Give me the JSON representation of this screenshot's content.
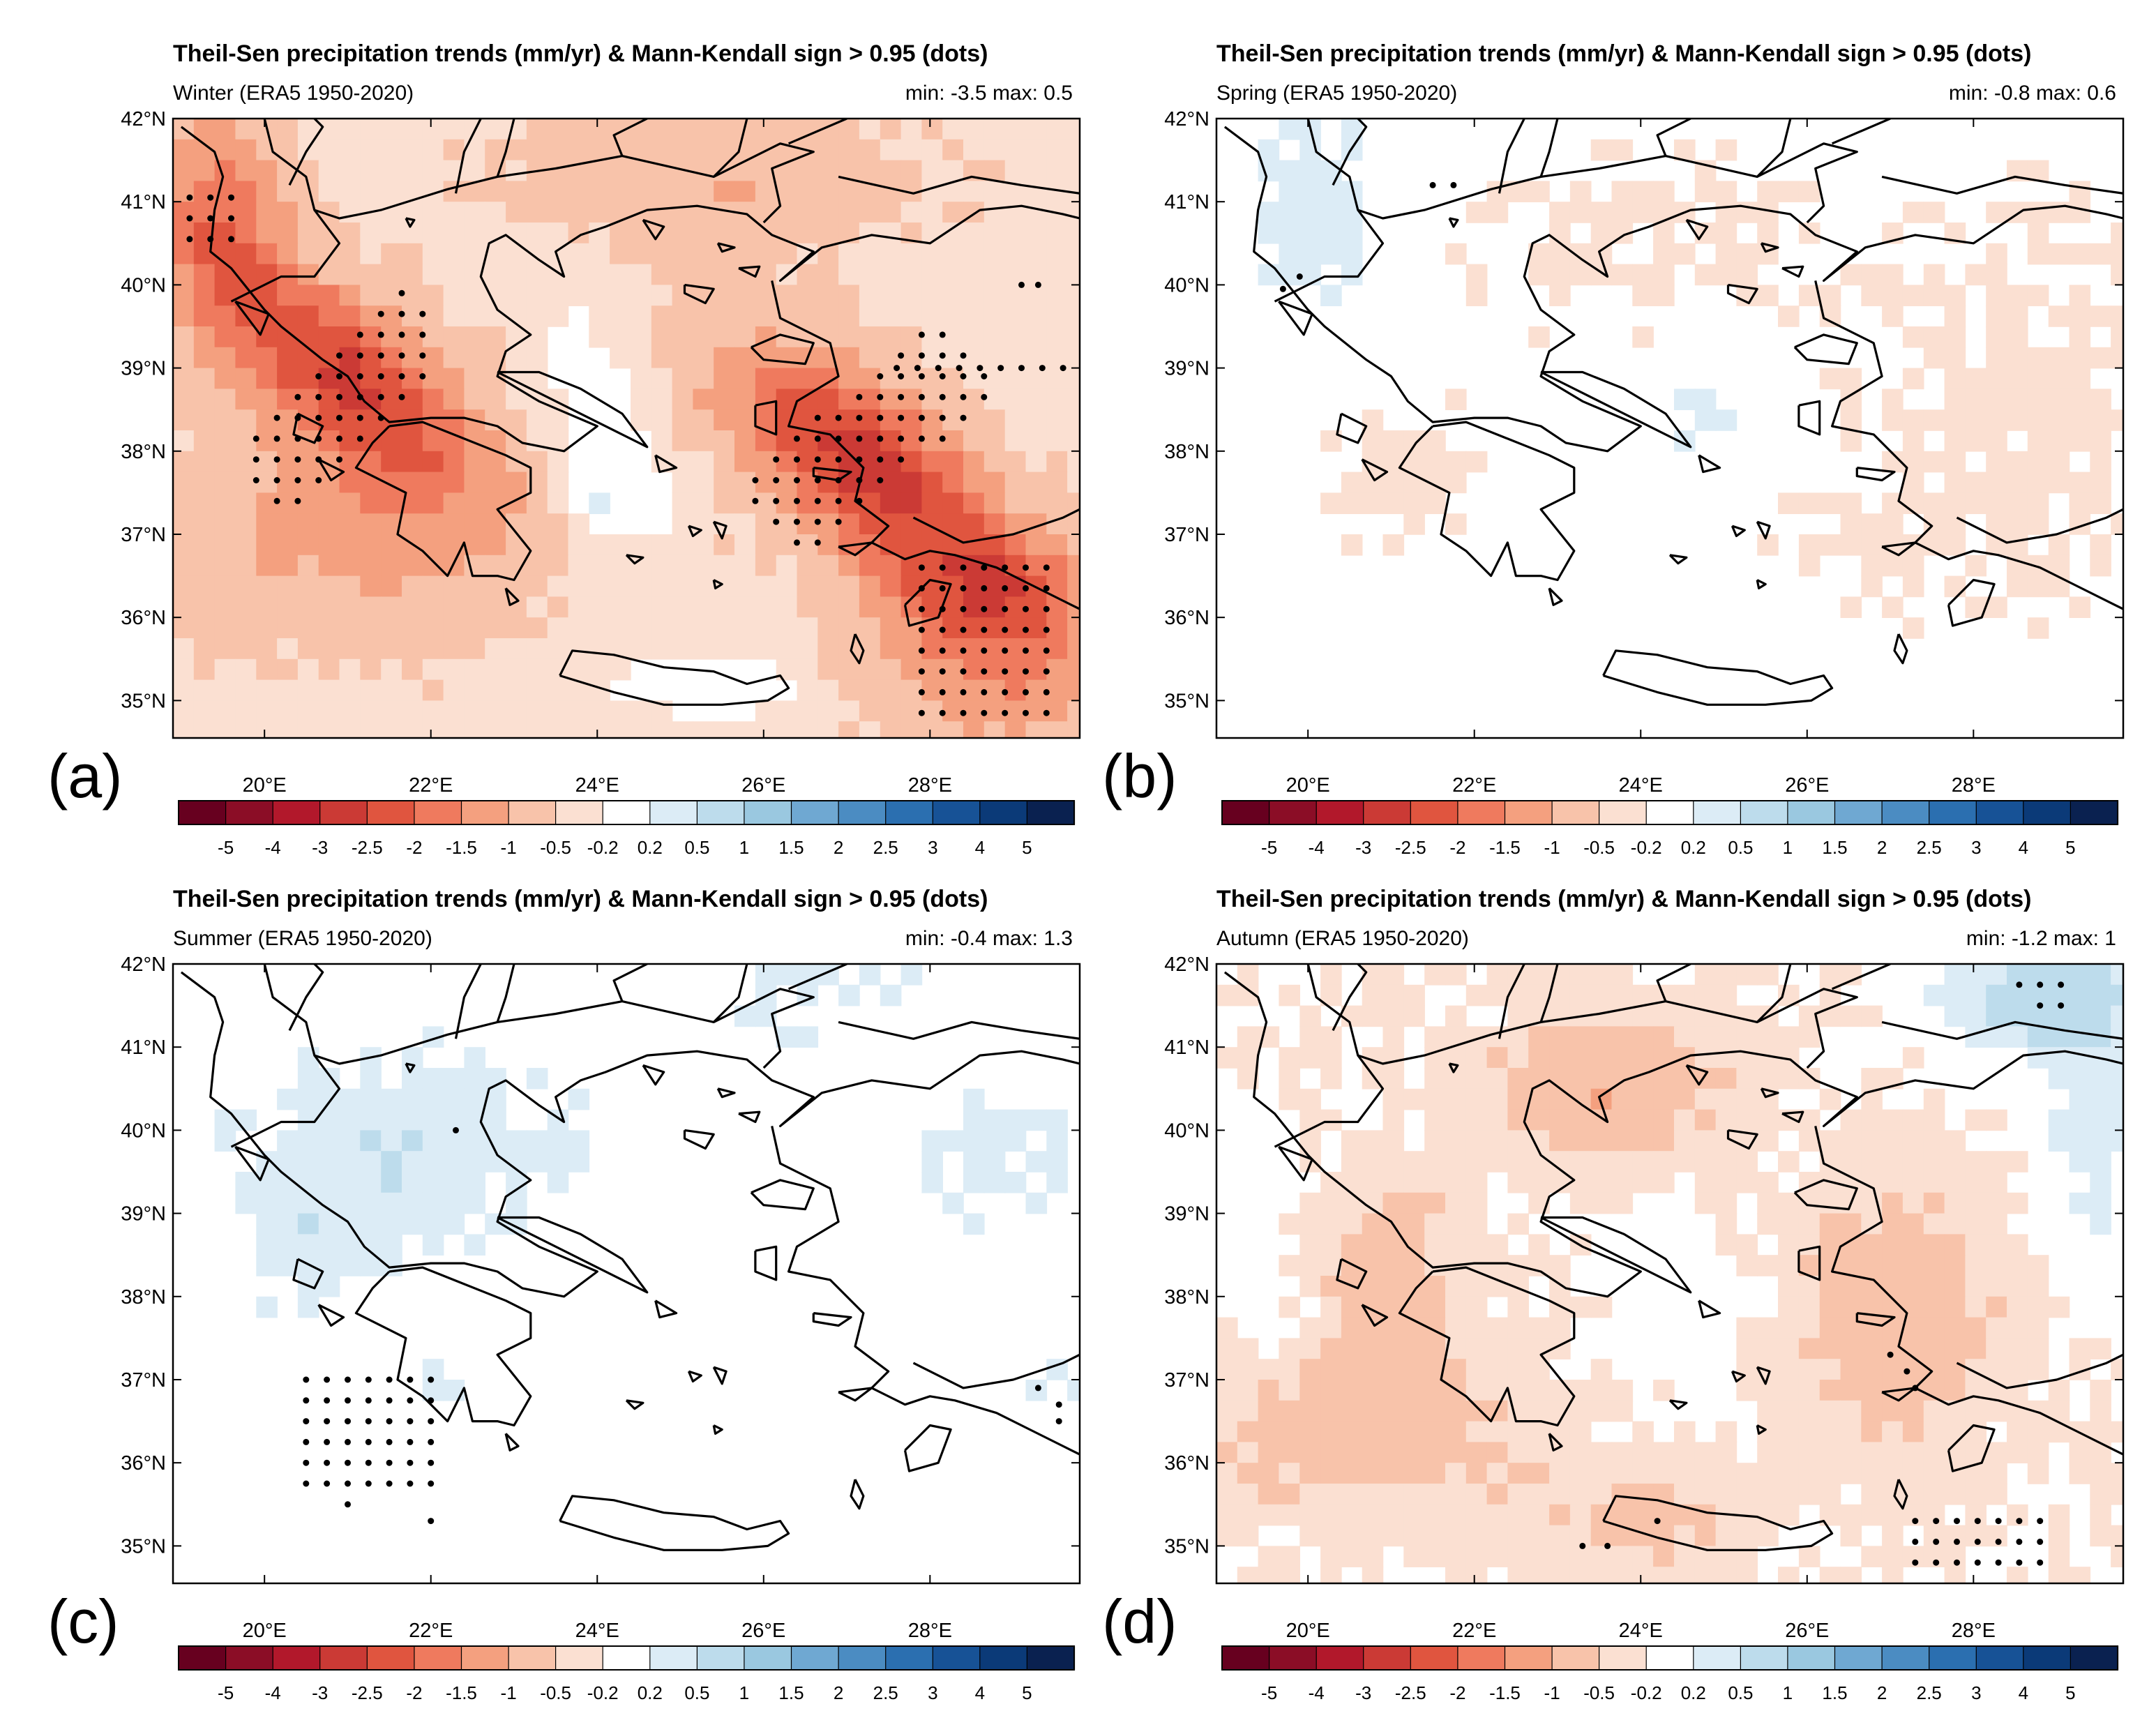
{
  "figure": {
    "shared_title": "Theil-Sen precipitation trends (mm/yr) & Mann-Kendall sign > 0.95 (dots)",
    "lat_labels": [
      "42°N",
      "41°N",
      "40°N",
      "39°N",
      "38°N",
      "37°N",
      "36°N",
      "35°N"
    ],
    "lon_labels": [
      "20°E",
      "22°E",
      "24°E",
      "26°E",
      "28°E"
    ],
    "colorbar": {
      "labels": [
        "-5",
        "-4",
        "-3",
        "-2.5",
        "-2",
        "-1.5",
        "-1",
        "-0.5",
        "-0.2",
        "0.2",
        "0.5",
        "1",
        "1.5",
        "2",
        "2.5",
        "3",
        "4",
        "5"
      ],
      "colors": [
        "#67001f",
        "#8b0d26",
        "#b2182b",
        "#cb3a35",
        "#e0553f",
        "#ef7a5e",
        "#f4a07f",
        "#f8c3aa",
        "#fbe0d2",
        "#ffffff",
        "#dcecf6",
        "#bddcec",
        "#9ac8e0",
        "#6fa8d2",
        "#4b8cc2",
        "#2b6fb0",
        "#175296",
        "#0b3a78",
        "#0a2150"
      ]
    },
    "panels": [
      {
        "id": "a",
        "label": "(a)",
        "season": "Winter (ERA5 1950-2020)",
        "min_text": "min: -3.5",
        "max_text": "max: 0.5",
        "min_value": -3.5,
        "max_value": 0.5
      },
      {
        "id": "b",
        "label": "(b)",
        "season": "Spring (ERA5 1950-2020)",
        "min_text": "min: -0.8",
        "max_text": "max: 0.6",
        "min_value": -0.8,
        "max_value": 0.6
      },
      {
        "id": "c",
        "label": "(c)",
        "season": "Summer (ERA5 1950-2020)",
        "min_text": "min: -0.4",
        "max_text": "max: 1.3",
        "min_value": -0.4,
        "max_value": 1.3
      },
      {
        "id": "d",
        "label": "(d)",
        "season": "Autumn (ERA5 1950-2020)",
        "min_text": "min: -1.2",
        "max_text": "max: 1",
        "min_value": -1.2,
        "max_value": 1.0
      }
    ]
  }
}
